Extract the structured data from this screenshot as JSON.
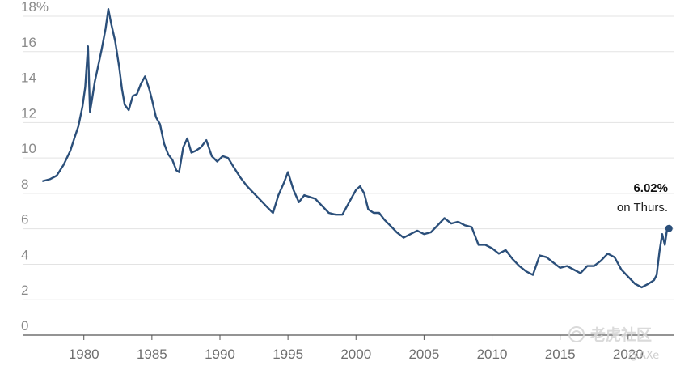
{
  "chart_data": {
    "type": "line",
    "title": "",
    "xlabel": "",
    "ylabel": "",
    "xlim": [
      1975.5,
      2023.4
    ],
    "ylim": [
      0,
      18
    ],
    "y_ticks": [
      0,
      2,
      4,
      6,
      8,
      10,
      12,
      14,
      16,
      18
    ],
    "y_tick_labels": [
      "0",
      "2",
      "4",
      "6",
      "8",
      "10",
      "12",
      "14",
      "16",
      "18%"
    ],
    "x_ticks": [
      1980,
      1985,
      1990,
      1995,
      2000,
      2005,
      2010,
      2015,
      2020
    ],
    "x_tick_labels": [
      "1980",
      "1985",
      "1990",
      "1995",
      "2000",
      "2005",
      "2010",
      "2015",
      "2020"
    ],
    "grid": true,
    "series_color": "#2b4f7a",
    "series": [
      {
        "name": "",
        "x": [
          1977.0,
          1977.5,
          1978.0,
          1978.5,
          1979.0,
          1979.3,
          1979.6,
          1979.9,
          1980.1,
          1980.3,
          1980.45,
          1980.6,
          1980.8,
          1981.0,
          1981.3,
          1981.6,
          1981.8,
          1982.0,
          1982.3,
          1982.6,
          1982.8,
          1983.0,
          1983.3,
          1983.6,
          1983.9,
          1984.2,
          1984.5,
          1984.8,
          1985.0,
          1985.3,
          1985.6,
          1985.9,
          1986.2,
          1986.5,
          1986.8,
          1987.0,
          1987.3,
          1987.6,
          1987.9,
          1988.2,
          1988.6,
          1989.0,
          1989.4,
          1989.8,
          1990.2,
          1990.6,
          1991.0,
          1991.5,
          1992.0,
          1992.5,
          1993.0,
          1993.5,
          1993.9,
          1994.3,
          1994.7,
          1995.0,
          1995.4,
          1995.8,
          1996.2,
          1996.6,
          1997.0,
          1997.5,
          1998.0,
          1998.5,
          1999.0,
          1999.5,
          2000.0,
          2000.3,
          2000.6,
          2000.9,
          2001.3,
          2001.7,
          2002.1,
          2002.5,
          2003.0,
          2003.5,
          2004.0,
          2004.5,
          2005.0,
          2005.5,
          2006.0,
          2006.5,
          2007.0,
          2007.5,
          2008.0,
          2008.5,
          2009.0,
          2009.5,
          2010.0,
          2010.5,
          2011.0,
          2011.5,
          2012.0,
          2012.5,
          2013.0,
          2013.5,
          2014.0,
          2014.5,
          2015.0,
          2015.5,
          2016.0,
          2016.5,
          2017.0,
          2017.5,
          2018.0,
          2018.5,
          2019.0,
          2019.5,
          2020.0,
          2020.5,
          2021.0,
          2021.5,
          2021.9,
          2022.1,
          2022.3,
          2022.5,
          2022.7,
          2022.85,
          2023.0
        ],
        "values": [
          8.7,
          8.8,
          9.0,
          9.6,
          10.4,
          11.1,
          11.8,
          12.9,
          14.0,
          16.3,
          12.6,
          13.3,
          14.3,
          15.0,
          16.1,
          17.3,
          18.4,
          17.6,
          16.6,
          15.1,
          13.9,
          13.0,
          12.7,
          13.5,
          13.6,
          14.2,
          14.6,
          13.9,
          13.3,
          12.3,
          11.9,
          10.8,
          10.2,
          9.9,
          9.3,
          9.2,
          10.6,
          11.1,
          10.3,
          10.4,
          10.6,
          11.0,
          10.1,
          9.8,
          10.1,
          10.0,
          9.5,
          8.9,
          8.4,
          8.0,
          7.6,
          7.2,
          6.9,
          7.9,
          8.6,
          9.2,
          8.2,
          7.5,
          7.9,
          7.8,
          7.7,
          7.3,
          6.9,
          6.8,
          6.8,
          7.5,
          8.2,
          8.4,
          8.0,
          7.1,
          6.9,
          6.9,
          6.5,
          6.2,
          5.8,
          5.5,
          5.7,
          5.9,
          5.7,
          5.8,
          6.2,
          6.6,
          6.3,
          6.4,
          6.2,
          6.1,
          5.1,
          5.1,
          4.9,
          4.6,
          4.8,
          4.3,
          3.9,
          3.6,
          3.4,
          4.5,
          4.4,
          4.1,
          3.8,
          3.9,
          3.7,
          3.5,
          3.9,
          3.9,
          4.2,
          4.6,
          4.4,
          3.7,
          3.3,
          2.9,
          2.7,
          2.9,
          3.1,
          3.4,
          4.7,
          5.7,
          5.1,
          5.9,
          6.02
        ]
      }
    ],
    "annotation": {
      "value": "6.02%",
      "text": "on Thurs.",
      "x": 2023.0,
      "y": 6.02
    }
  },
  "watermark": {
    "logo": "老虎社区",
    "handle": "@AXe"
  }
}
